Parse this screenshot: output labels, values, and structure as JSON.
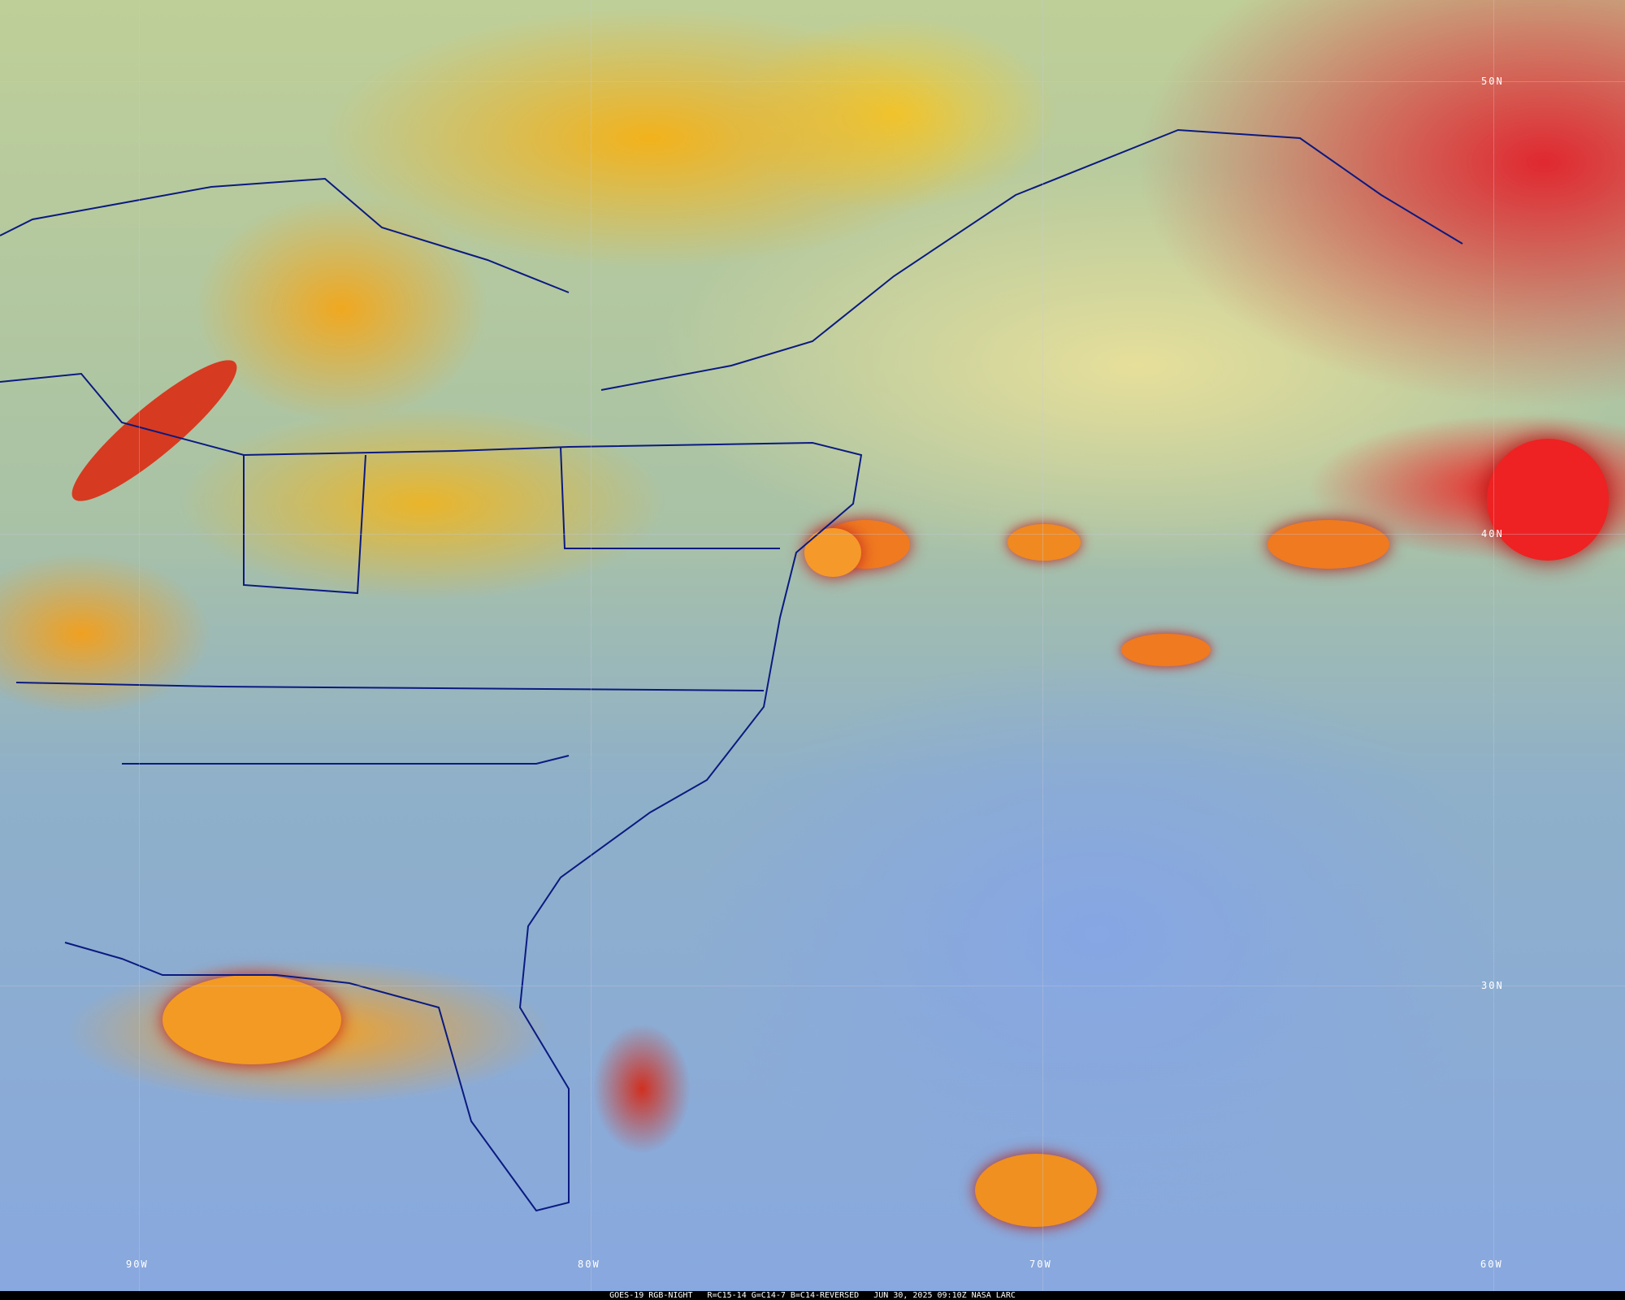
{
  "caption": {
    "satellite": "GOES-19 RGB-NIGHT",
    "channels": "R=C15-14 G=C14-7 B=C14-REVERSED",
    "datetime": "JUN 30, 2025 09:10Z",
    "credit": "NASA LARC"
  },
  "grid_labels": {
    "lat": [
      "50N",
      "40N",
      "30N"
    ],
    "lon": [
      "90W",
      "80W",
      "70W",
      "60W"
    ]
  },
  "colors": {
    "outline": "#0a1a80",
    "deep_convection": "#e02830",
    "high_cloud": "#f2b21c",
    "clear_ocean": "#88a8e0"
  }
}
